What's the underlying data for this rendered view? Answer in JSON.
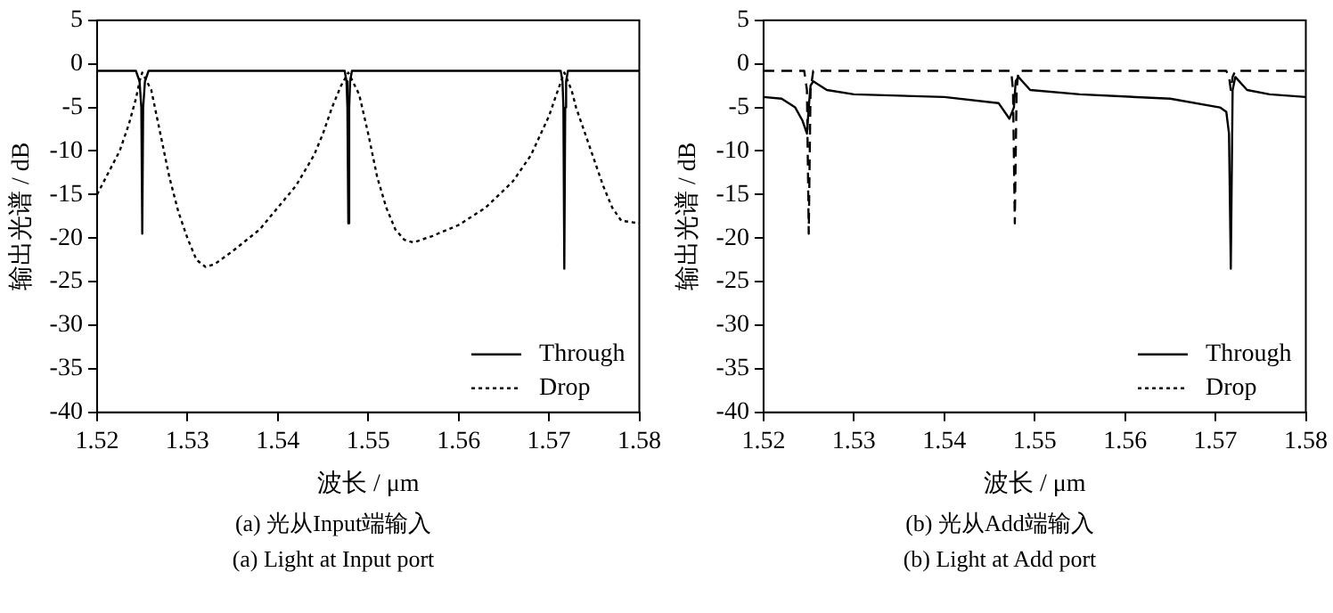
{
  "chart_data": [
    {
      "type": "line",
      "xlabel": "波长 / μm",
      "ylabel": "输出光谱 / dB",
      "xlim": [
        1.52,
        1.58
      ],
      "xticks": [
        1.52,
        1.53,
        1.54,
        1.55,
        1.56,
        1.57,
        1.58
      ],
      "ylim": [
        -40,
        5
      ],
      "yticks": [
        -40,
        -35,
        -30,
        -25,
        -20,
        -15,
        -10,
        -5,
        0,
        5
      ],
      "grid": false,
      "legend": "bottom right",
      "marker": "none",
      "annotations": [
        "(a) 光从Input端输入",
        "(a) Light at Input port"
      ],
      "series": [
        {
          "name": "Through",
          "color": "#000000",
          "line_style": "solid",
          "x": [
            1.52,
            1.5243,
            1.5247,
            1.5249,
            1.525,
            1.5251,
            1.5253,
            1.5257,
            1.5474,
            1.5476,
            1.5477,
            1.5478,
            1.5479,
            1.548,
            1.5482,
            1.5713,
            1.5715,
            1.5716,
            1.5717,
            1.5718,
            1.5719,
            1.5721,
            1.58
          ],
          "values": [
            -0.8,
            -0.8,
            -2,
            -5,
            -19.5,
            -5,
            -2,
            -0.8,
            -0.8,
            -2,
            -5,
            -18.3,
            -5,
            -2,
            -0.8,
            -0.8,
            -2,
            -5,
            -23.5,
            -5,
            -2,
            -0.8,
            -0.8
          ]
        },
        {
          "name": "Drop",
          "color": "#000000",
          "line_style": "dotted",
          "x": [
            1.52,
            1.521,
            1.5225,
            1.5235,
            1.5243,
            1.5247,
            1.525,
            1.526,
            1.527,
            1.528,
            1.529,
            1.53,
            1.531,
            1.532,
            1.533,
            1.535,
            1.538,
            1.54,
            1.542,
            1.544,
            1.545,
            1.546,
            1.547,
            1.5478,
            1.549,
            1.55,
            1.551,
            1.552,
            1.553,
            1.554,
            1.555,
            1.557,
            1.56,
            1.563,
            1.566,
            1.568,
            1.57,
            1.571,
            1.5717,
            1.5725,
            1.573,
            1.574,
            1.575,
            1.576,
            1.577,
            1.578,
            1.58
          ],
          "values": [
            -15,
            -13,
            -10,
            -7,
            -4,
            -2,
            -1,
            -3,
            -8,
            -13,
            -17,
            -20,
            -22.5,
            -23.3,
            -23,
            -21.5,
            -19,
            -16.5,
            -14,
            -10.5,
            -8,
            -5,
            -2.5,
            -1,
            -3.5,
            -8,
            -13,
            -16.5,
            -19,
            -20.2,
            -20.5,
            -19.8,
            -18.5,
            -16.5,
            -13.5,
            -10.5,
            -6,
            -3,
            -1,
            -3,
            -5,
            -8,
            -11,
            -14,
            -16.5,
            -18,
            -18.3
          ]
        }
      ]
    },
    {
      "type": "line",
      "xlabel": "波长 / μm",
      "ylabel": "输出光谱 / dB",
      "xlim": [
        1.52,
        1.58
      ],
      "xticks": [
        1.52,
        1.53,
        1.54,
        1.55,
        1.56,
        1.57,
        1.58
      ],
      "ylim": [
        -40,
        5
      ],
      "yticks": [
        -40,
        -35,
        -30,
        -25,
        -20,
        -15,
        -10,
        -5,
        0,
        5
      ],
      "grid": false,
      "legend": "bottom right",
      "marker": "none",
      "annotations": [
        "(b) 光从Add端输入",
        "(b) Light at Add port"
      ],
      "series": [
        {
          "name": "Through",
          "color": "#000000",
          "line_style": "solid",
          "x": [
            1.52,
            1.522,
            1.5235,
            1.5243,
            1.5248,
            1.525,
            1.5252,
            1.5255,
            1.527,
            1.53,
            1.54,
            1.546,
            1.5472,
            1.5477,
            1.5479,
            1.5482,
            1.5495,
            1.555,
            1.565,
            1.5705,
            1.5712,
            1.5715,
            1.5717,
            1.5719,
            1.5722,
            1.5735,
            1.576,
            1.58
          ],
          "values": [
            -3.8,
            -4,
            -5,
            -6.5,
            -8,
            -5,
            -2.5,
            -2,
            -3,
            -3.5,
            -3.8,
            -4.5,
            -6.3,
            -5,
            -2,
            -1.5,
            -3,
            -3.5,
            -4,
            -5,
            -5.5,
            -8,
            -23.5,
            -3,
            -1.5,
            -3,
            -3.5,
            -3.8
          ]
        },
        {
          "name": "Drop",
          "color": "#000000",
          "line_style": "dashed",
          "x": [
            1.52,
            1.5245,
            1.5248,
            1.525,
            1.5252,
            1.5255,
            1.5474,
            1.5476,
            1.5478,
            1.548,
            1.5482,
            1.5712,
            1.5715,
            1.5717,
            1.5719,
            1.5722,
            1.58
          ],
          "values": [
            -0.8,
            -0.8,
            -3,
            -19.5,
            -3,
            -0.8,
            -0.8,
            -3,
            -18.3,
            -3,
            -0.8,
            -0.8,
            -1.5,
            -3,
            -1.5,
            -0.8,
            -0.8
          ]
        }
      ]
    }
  ]
}
